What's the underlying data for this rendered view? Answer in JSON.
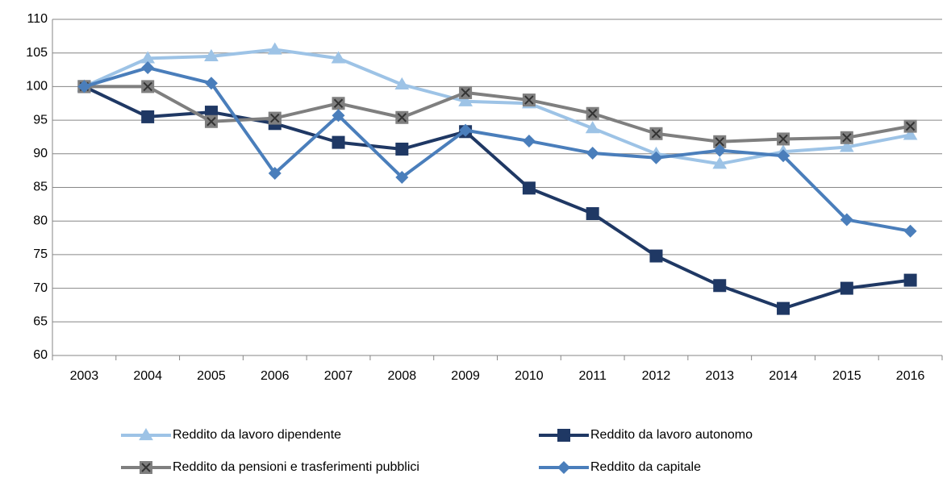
{
  "chart_data": {
    "type": "line",
    "categories": [
      "2003",
      "2004",
      "2005",
      "2006",
      "2007",
      "2008",
      "2009",
      "2010",
      "2011",
      "2012",
      "2013",
      "2014",
      "2015",
      "2016"
    ],
    "series": [
      {
        "name": "Reddito da lavoro dipendente",
        "color": "#9dc3e6",
        "marker": "triangle",
        "values": [
          100,
          104.2,
          104.5,
          105.5,
          104.2,
          100.3,
          97.8,
          97.5,
          93.8,
          90,
          88.5,
          90.3,
          91,
          92.8
        ]
      },
      {
        "name": "Reddito da lavoro autonomo",
        "color": "#1f3864",
        "marker": "square",
        "values": [
          100,
          95.5,
          96.2,
          94.5,
          91.7,
          90.7,
          93.3,
          84.9,
          81.1,
          74.8,
          70.4,
          67,
          70,
          71.2
        ]
      },
      {
        "name": "Reddito da pensioni e trasferimenti pubblici",
        "color": "#7f7f7f",
        "marker": "xsquare",
        "values": [
          100,
          100,
          94.8,
          95.3,
          97.5,
          95.4,
          99.1,
          98,
          96,
          93,
          91.8,
          92.2,
          92.4,
          94.1
        ]
      },
      {
        "name": "Reddito da capitale",
        "color": "#4a7ebb",
        "marker": "diamond",
        "values": [
          100,
          102.8,
          100.5,
          87.1,
          95.7,
          86.5,
          93.5,
          91.9,
          90.1,
          89.4,
          90.5,
          89.7,
          80.2,
          78.5
        ]
      }
    ],
    "ylim": [
      60,
      110
    ],
    "yticks": [
      60,
      65,
      70,
      75,
      80,
      85,
      90,
      95,
      100,
      105,
      110
    ],
    "grid": true
  }
}
